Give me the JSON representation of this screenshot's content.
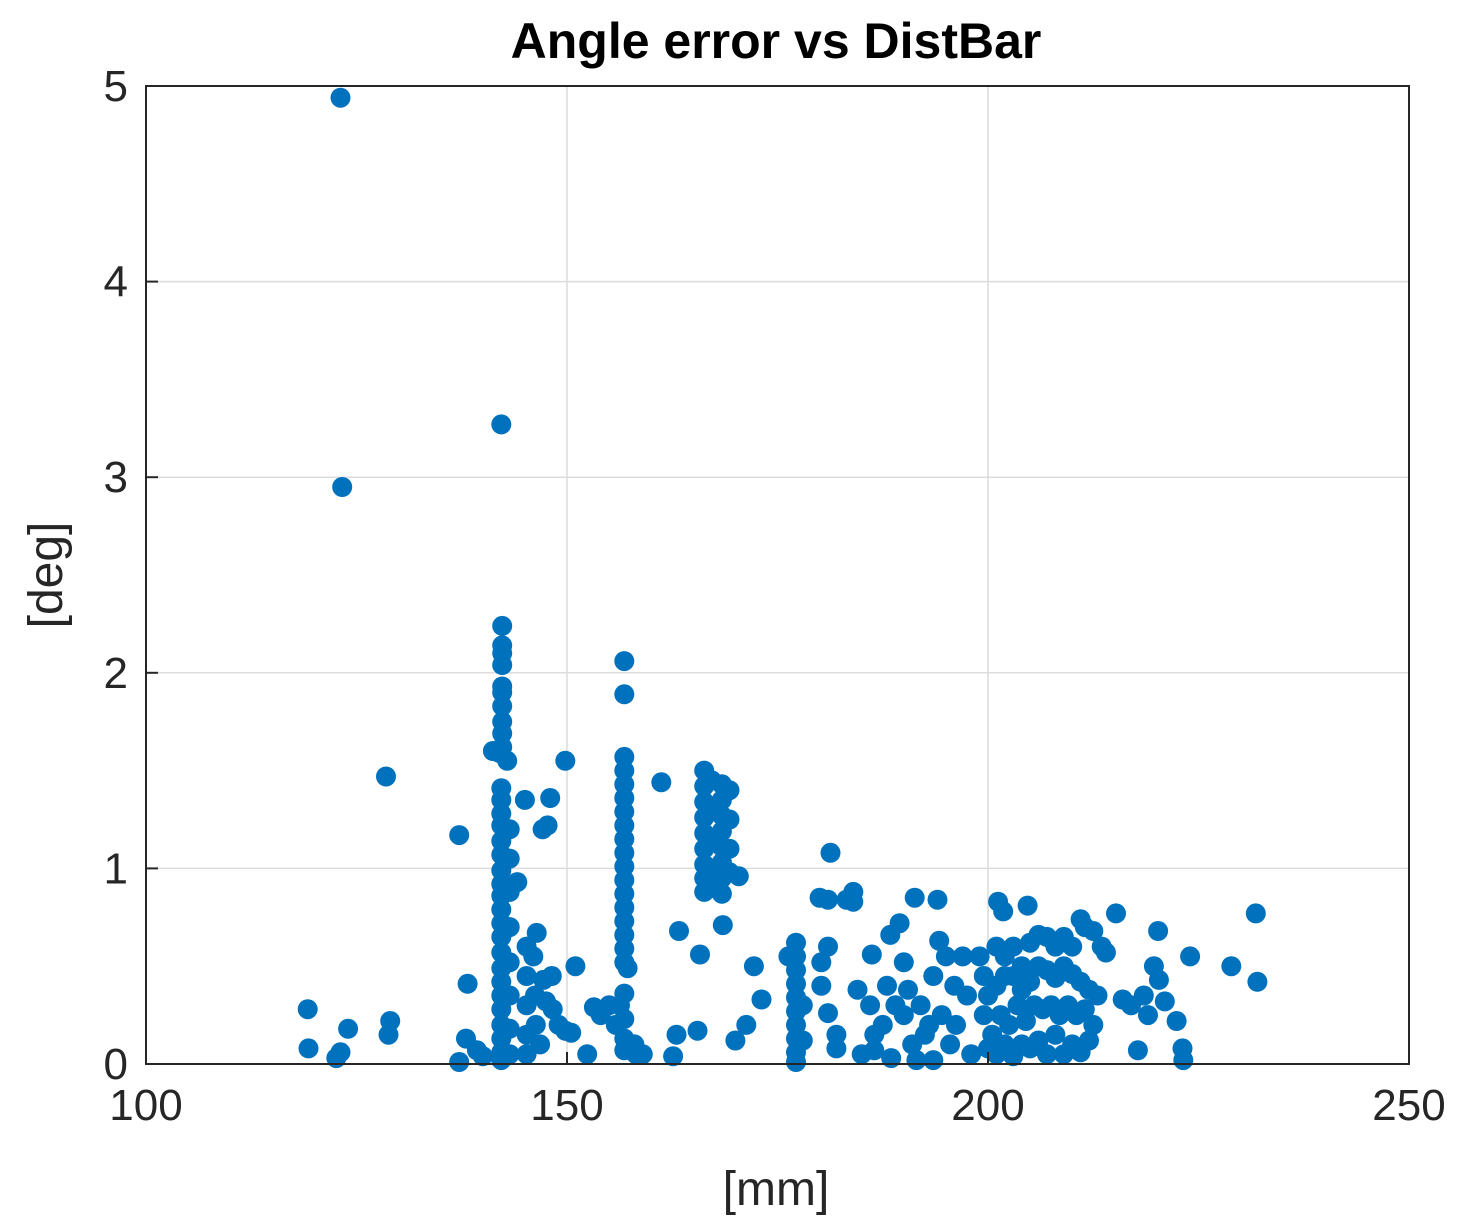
{
  "chart_data": {
    "type": "scatter",
    "title": "Angle error vs DistBar",
    "xlabel": "[mm]",
    "ylabel": "[deg]",
    "xlim": [
      100,
      250
    ],
    "ylim": [
      0,
      5
    ],
    "xticks": [
      100,
      150,
      200,
      250
    ],
    "yticks": [
      0,
      1,
      2,
      3,
      4,
      5
    ],
    "xtick_labels": [
      "100",
      "150",
      "200",
      "250"
    ],
    "ytick_labels": [
      "0",
      "1",
      "2",
      "3",
      "4",
      "5"
    ],
    "grid": true,
    "marker_color": "#0072BD",
    "series": [
      {
        "points": [
          [
            123.1,
            4.94
          ],
          [
            123.3,
            2.95
          ],
          [
            142.2,
            3.27
          ],
          [
            142.3,
            2.24
          ],
          [
            142.3,
            2.14
          ],
          [
            142.3,
            2.1
          ],
          [
            142.3,
            2.04
          ],
          [
            142.3,
            1.93
          ],
          [
            142.3,
            1.9
          ],
          [
            142.3,
            1.83
          ],
          [
            142.3,
            1.75
          ],
          [
            142.3,
            1.69
          ],
          [
            142.3,
            1.62
          ],
          [
            141.2,
            1.6
          ],
          [
            142.0,
            1.59
          ],
          [
            142.9,
            1.55
          ],
          [
            142.2,
            1.41
          ],
          [
            142.2,
            1.35
          ],
          [
            142.2,
            1.28
          ],
          [
            142.2,
            1.22
          ],
          [
            142.2,
            1.14
          ],
          [
            142.2,
            1.07
          ],
          [
            142.2,
            0.99
          ],
          [
            142.2,
            0.92
          ],
          [
            142.2,
            0.86
          ],
          [
            142.2,
            0.79
          ],
          [
            142.2,
            0.72
          ],
          [
            142.2,
            0.65
          ],
          [
            142.2,
            0.57
          ],
          [
            142.2,
            0.49
          ],
          [
            142.2,
            0.42
          ],
          [
            142.2,
            0.35
          ],
          [
            142.2,
            0.28
          ],
          [
            142.2,
            0.2
          ],
          [
            142.2,
            0.13
          ],
          [
            142.2,
            0.06
          ],
          [
            142.2,
            0.02
          ],
          [
            143.2,
            1.2
          ],
          [
            143.2,
            1.05
          ],
          [
            143.2,
            0.88
          ],
          [
            143.2,
            0.7
          ],
          [
            143.2,
            0.52
          ],
          [
            143.2,
            0.35
          ],
          [
            143.2,
            0.18
          ],
          [
            143.2,
            0.05
          ],
          [
            144.1,
            0.93
          ],
          [
            156.8,
            2.06
          ],
          [
            156.8,
            1.89
          ],
          [
            156.8,
            1.57
          ],
          [
            156.8,
            1.5
          ],
          [
            156.8,
            1.43
          ],
          [
            156.8,
            1.36
          ],
          [
            156.8,
            1.29
          ],
          [
            156.8,
            1.22
          ],
          [
            156.8,
            1.15
          ],
          [
            156.8,
            1.08
          ],
          [
            156.8,
            1.01
          ],
          [
            156.8,
            0.94
          ],
          [
            156.8,
            0.87
          ],
          [
            156.8,
            0.8
          ],
          [
            156.8,
            0.73
          ],
          [
            156.8,
            0.66
          ],
          [
            156.8,
            0.59
          ],
          [
            156.8,
            0.52
          ],
          [
            157.2,
            0.49
          ],
          [
            156.8,
            0.36
          ],
          [
            156.3,
            0.3
          ],
          [
            156.8,
            0.23
          ],
          [
            156.8,
            0.13
          ],
          [
            156.8,
            0.07
          ],
          [
            158.2,
            0.05
          ],
          [
            166.3,
            1.5
          ],
          [
            166.3,
            1.42
          ],
          [
            166.3,
            1.34
          ],
          [
            166.3,
            1.26
          ],
          [
            166.3,
            1.18
          ],
          [
            166.3,
            1.1
          ],
          [
            166.3,
            1.02
          ],
          [
            166.3,
            0.95
          ],
          [
            166.3,
            0.88
          ],
          [
            167.2,
            1.45
          ],
          [
            167.2,
            1.3
          ],
          [
            167.2,
            1.15
          ],
          [
            167.2,
            1.0
          ],
          [
            167.2,
            0.9
          ],
          [
            168.4,
            1.43
          ],
          [
            168.4,
            1.35
          ],
          [
            168.4,
            1.27
          ],
          [
            168.4,
            1.19
          ],
          [
            168.4,
            1.11
          ],
          [
            168.4,
            1.03
          ],
          [
            168.4,
            0.95
          ],
          [
            168.4,
            0.87
          ],
          [
            168.5,
            0.71
          ],
          [
            169.3,
            1.4
          ],
          [
            169.3,
            1.25
          ],
          [
            169.3,
            1.1
          ],
          [
            169.3,
            0.98
          ],
          [
            170.4,
            0.96
          ],
          [
            119.2,
            0.28
          ],
          [
            119.3,
            0.08
          ],
          [
            122.6,
            0.03
          ],
          [
            123.1,
            0.06
          ],
          [
            124.0,
            0.18
          ],
          [
            128.5,
            1.47
          ],
          [
            129.0,
            0.22
          ],
          [
            128.8,
            0.15
          ],
          [
            137.2,
            1.17
          ],
          [
            137.2,
            0.01
          ],
          [
            138.2,
            0.41
          ],
          [
            138.0,
            0.13
          ],
          [
            139.3,
            0.07
          ],
          [
            140.0,
            0.04
          ],
          [
            145.0,
            1.35
          ],
          [
            147.1,
            1.2
          ],
          [
            147.7,
            1.22
          ],
          [
            148.0,
            1.36
          ],
          [
            149.8,
            1.55
          ],
          [
            151.0,
            0.5
          ],
          [
            146.4,
            0.67
          ],
          [
            147.2,
            0.43
          ],
          [
            148.2,
            0.45
          ],
          [
            145.2,
            0.6
          ],
          [
            145.2,
            0.45
          ],
          [
            145.2,
            0.3
          ],
          [
            145.2,
            0.15
          ],
          [
            145.2,
            0.05
          ],
          [
            146.0,
            0.55
          ],
          [
            146.2,
            0.35
          ],
          [
            146.3,
            0.2
          ],
          [
            146.8,
            0.1
          ],
          [
            147.5,
            0.32
          ],
          [
            148.3,
            0.28
          ],
          [
            149.0,
            0.2
          ],
          [
            149.8,
            0.17
          ],
          [
            150.5,
            0.16
          ],
          [
            152.4,
            0.05
          ],
          [
            153.2,
            0.29
          ],
          [
            154.0,
            0.25
          ],
          [
            155.0,
            0.3
          ],
          [
            155.8,
            0.2
          ],
          [
            158.0,
            0.1
          ],
          [
            159.0,
            0.05
          ],
          [
            161.2,
            1.44
          ],
          [
            163.3,
            0.68
          ],
          [
            163.0,
            0.15
          ],
          [
            162.6,
            0.04
          ],
          [
            165.5,
            0.17
          ],
          [
            165.8,
            0.56
          ],
          [
            170.0,
            0.12
          ],
          [
            171.3,
            0.2
          ],
          [
            172.2,
            0.5
          ],
          [
            173.1,
            0.33
          ],
          [
            177.2,
            0.62
          ],
          [
            177.2,
            0.55
          ],
          [
            177.2,
            0.48
          ],
          [
            177.2,
            0.41
          ],
          [
            177.2,
            0.34
          ],
          [
            177.2,
            0.27
          ],
          [
            177.2,
            0.2
          ],
          [
            177.2,
            0.13
          ],
          [
            177.2,
            0.06
          ],
          [
            177.2,
            0.01
          ],
          [
            176.3,
            0.55
          ],
          [
            178.0,
            0.3
          ],
          [
            178.0,
            0.12
          ],
          [
            180.0,
            0.85
          ],
          [
            181.3,
            1.08
          ],
          [
            181.0,
            0.84
          ],
          [
            180.2,
            0.52
          ],
          [
            180.2,
            0.4
          ],
          [
            181.0,
            0.6
          ],
          [
            181.0,
            0.26
          ],
          [
            182.0,
            0.15
          ],
          [
            182.0,
            0.08
          ],
          [
            183.2,
            0.84
          ],
          [
            184.0,
            0.88
          ],
          [
            184.0,
            0.83
          ],
          [
            184.5,
            0.38
          ],
          [
            186.2,
            0.56
          ],
          [
            186.0,
            0.3
          ],
          [
            186.5,
            0.15
          ],
          [
            188.4,
            0.66
          ],
          [
            189.5,
            0.72
          ],
          [
            191.3,
            0.85
          ],
          [
            194.0,
            0.84
          ],
          [
            188.0,
            0.4
          ],
          [
            190.0,
            0.52
          ],
          [
            190.0,
            0.25
          ],
          [
            191.0,
            0.1
          ],
          [
            192.0,
            0.3
          ],
          [
            193.5,
            0.45
          ],
          [
            195.0,
            0.55
          ],
          [
            194.2,
            0.63
          ],
          [
            196.2,
            0.2
          ],
          [
            197.0,
            0.55
          ],
          [
            197.5,
            0.35
          ],
          [
            198.0,
            0.05
          ],
          [
            199.0,
            0.55
          ],
          [
            199.5,
            0.45
          ],
          [
            185.0,
            0.05
          ],
          [
            186.5,
            0.07
          ],
          [
            187.5,
            0.2
          ],
          [
            188.5,
            0.03
          ],
          [
            189.0,
            0.3
          ],
          [
            190.5,
            0.38
          ],
          [
            191.5,
            0.02
          ],
          [
            192.5,
            0.15
          ],
          [
            193.0,
            0.2
          ],
          [
            193.5,
            0.02
          ],
          [
            194.5,
            0.25
          ],
          [
            195.5,
            0.1
          ],
          [
            196.0,
            0.4
          ],
          [
            201.2,
            0.83
          ],
          [
            201.8,
            0.78
          ],
          [
            204.7,
            0.81
          ],
          [
            201.0,
            0.6
          ],
          [
            202.0,
            0.55
          ],
          [
            203.0,
            0.6
          ],
          [
            204.0,
            0.5
          ],
          [
            205.0,
            0.62
          ],
          [
            206.0,
            0.66
          ],
          [
            207.0,
            0.65
          ],
          [
            208.0,
            0.6
          ],
          [
            209.0,
            0.65
          ],
          [
            210.0,
            0.6
          ],
          [
            211.0,
            0.74
          ],
          [
            211.5,
            0.7
          ],
          [
            212.5,
            0.68
          ],
          [
            213.5,
            0.6
          ],
          [
            214.0,
            0.57
          ],
          [
            215.2,
            0.77
          ],
          [
            216.0,
            0.33
          ],
          [
            200.0,
            0.35
          ],
          [
            201.0,
            0.4
          ],
          [
            202.0,
            0.45
          ],
          [
            203.0,
            0.45
          ],
          [
            204.0,
            0.38
          ],
          [
            205.0,
            0.42
          ],
          [
            206.0,
            0.5
          ],
          [
            207.0,
            0.48
          ],
          [
            208.0,
            0.44
          ],
          [
            209.0,
            0.5
          ],
          [
            210.0,
            0.46
          ],
          [
            211.0,
            0.42
          ],
          [
            212.0,
            0.38
          ],
          [
            213.0,
            0.35
          ],
          [
            199.5,
            0.25
          ],
          [
            200.5,
            0.15
          ],
          [
            201.5,
            0.25
          ],
          [
            202.5,
            0.2
          ],
          [
            203.5,
            0.3
          ],
          [
            204.5,
            0.22
          ],
          [
            205.5,
            0.3
          ],
          [
            206.5,
            0.28
          ],
          [
            207.5,
            0.3
          ],
          [
            208.5,
            0.25
          ],
          [
            209.5,
            0.3
          ],
          [
            210.5,
            0.25
          ],
          [
            211.5,
            0.28
          ],
          [
            212.5,
            0.2
          ],
          [
            200.0,
            0.08
          ],
          [
            201.0,
            0.05
          ],
          [
            202.0,
            0.1
          ],
          [
            203.0,
            0.04
          ],
          [
            204.0,
            0.1
          ],
          [
            205.0,
            0.08
          ],
          [
            206.0,
            0.12
          ],
          [
            207.0,
            0.05
          ],
          [
            208.0,
            0.15
          ],
          [
            209.0,
            0.05
          ],
          [
            210.0,
            0.1
          ],
          [
            211.0,
            0.06
          ],
          [
            212.0,
            0.12
          ],
          [
            217.0,
            0.3
          ],
          [
            217.8,
            0.07
          ],
          [
            218.5,
            0.35
          ],
          [
            219.0,
            0.25
          ],
          [
            219.7,
            0.5
          ],
          [
            220.3,
            0.43
          ],
          [
            220.2,
            0.68
          ],
          [
            221.0,
            0.32
          ],
          [
            222.4,
            0.22
          ],
          [
            223.1,
            0.08
          ],
          [
            223.2,
            0.02
          ],
          [
            224.0,
            0.55
          ],
          [
            228.9,
            0.5
          ],
          [
            231.8,
            0.77
          ],
          [
            232.0,
            0.42
          ]
        ]
      }
    ]
  }
}
